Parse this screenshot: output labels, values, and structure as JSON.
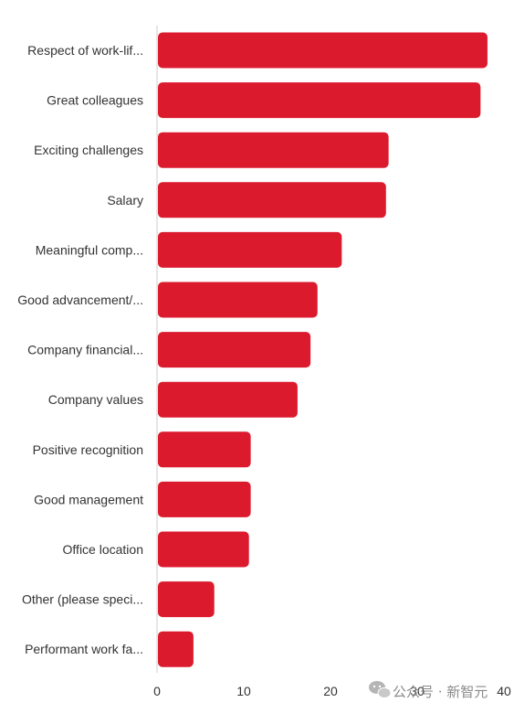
{
  "chart_data": {
    "type": "bar",
    "orientation": "horizontal",
    "categories": [
      "Respect of work-lif...",
      "Great colleagues",
      "Exciting challenges",
      "Salary",
      "Meaningful comp...",
      "Good advancement/...",
      "Company financial...",
      "Company values",
      "Positive recognition",
      "Good management",
      "Office location",
      "Other (please speci...",
      "Performant work fa..."
    ],
    "values": [
      38.1,
      37.3,
      26.7,
      26.4,
      21.3,
      18.5,
      17.7,
      16.2,
      10.8,
      10.8,
      10.6,
      6.6,
      4.2
    ],
    "xlim": [
      0,
      40
    ],
    "xticks": [
      0,
      10,
      20,
      30,
      40
    ],
    "bar_color": "#dc1a2e",
    "grid": false,
    "title": "",
    "xlabel": "",
    "ylabel": ""
  },
  "watermark": {
    "text": "公众号 · 新智元",
    "icon": "wechat-icon"
  }
}
